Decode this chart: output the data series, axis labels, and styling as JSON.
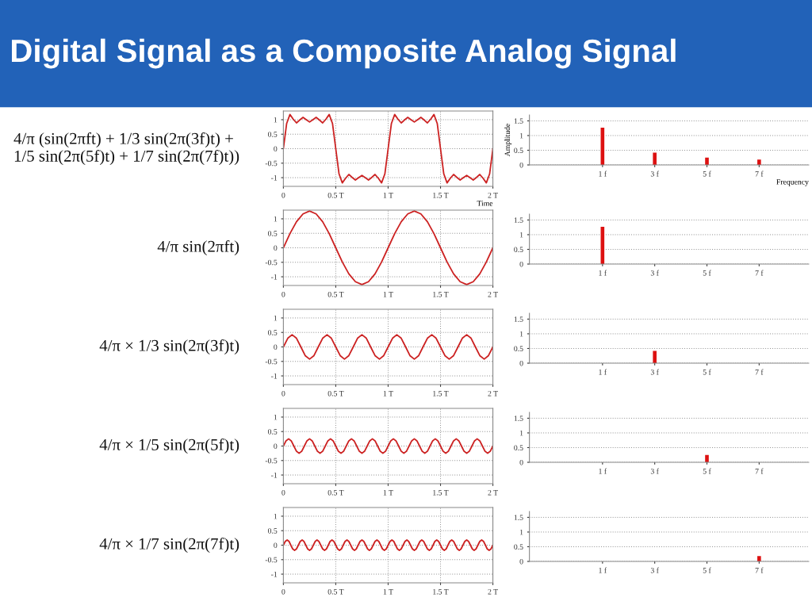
{
  "chart_data": [
    {
      "type": "line",
      "title": "Digital Signal as a Composite Analog Signal",
      "xlabel": "Time",
      "annotations": [
        "4/π (sin(2πft) + 1/3 sin(2π(3f)t) +\n1/5 sin(2π(5f)t) + 1/7 sin(2π(7f)t))"
      ],
      "xlim": [
        0,
        2
      ],
      "ylim": [
        -1.3,
        1.3
      ],
      "xticks": [
        0,
        {
          "value": 0.5,
          "label": "0.5 T"
        },
        {
          "value": 1,
          "label": "1 T"
        },
        {
          "value": 1.5,
          "label": "1.5 T"
        },
        {
          "value": 2,
          "label": "2 T"
        }
      ],
      "yticks": [
        -1,
        -0.5,
        0,
        0.5,
        1
      ],
      "grid": true,
      "series": [
        {
          "color": "#cc2222",
          "x": [
            0,
            0.0313,
            0.0625,
            0.0938,
            0.125,
            0.1563,
            0.1875,
            0.2188,
            0.25,
            0.2813,
            0.3125,
            0.3438,
            0.375,
            0.4063,
            0.4375,
            0.4688,
            0.5,
            0.5313,
            0.5625,
            0.5938,
            0.625,
            0.6563,
            0.6875,
            0.7188,
            0.75,
            0.7813,
            0.8125,
            0.8438,
            0.875,
            0.9063,
            0.9375,
            0.9688,
            1,
            1.0313,
            1.0625,
            1.0938,
            1.125,
            1.1563,
            1.1875,
            1.2188,
            1.25,
            1.2813,
            1.3125,
            1.3438,
            1.375,
            1.4063,
            1.4375,
            1.4688,
            1.5,
            1.5313,
            1.5625,
            1.5938,
            1.625,
            1.6563,
            1.6875,
            1.7188,
            1.75,
            1.7813,
            1.8125,
            1.8438,
            1.875,
            1.9063,
            1.9375,
            1.9688,
            2
          ],
          "values": [
            0,
            0.87,
            1.18,
            1.02,
            0.89,
            0.99,
            1.08,
            1.0,
            0.92,
            1.0,
            1.08,
            0.99,
            0.89,
            1.02,
            1.18,
            0.87,
            0,
            -0.87,
            -1.18,
            -1.02,
            -0.89,
            -0.99,
            -1.08,
            -1.0,
            -0.92,
            -1.0,
            -1.08,
            -0.99,
            -0.89,
            -1.02,
            -1.18,
            -0.87,
            0,
            0.87,
            1.18,
            1.02,
            0.89,
            0.99,
            1.08,
            1.0,
            0.92,
            1.0,
            1.08,
            0.99,
            0.89,
            1.02,
            1.18,
            0.87,
            0,
            -0.87,
            -1.18,
            -1.02,
            -0.89,
            -0.99,
            -1.08,
            -1.0,
            -0.92,
            -1.0,
            -1.08,
            -0.99,
            -0.89,
            -1.02,
            -1.18,
            -0.87,
            0
          ]
        }
      ]
    },
    {
      "type": "bar",
      "xlabel": "Frequency",
      "ylabel": "Amplitude",
      "categories": [
        "1 f",
        "3 f",
        "5 f",
        "7 f"
      ],
      "values": [
        1.27,
        0.42,
        0.25,
        0.18
      ],
      "color": "#dd1111",
      "ylim": [
        0,
        1.7
      ],
      "yticks": [
        0,
        0.5,
        1,
        1.5
      ],
      "grid": "y"
    },
    {
      "type": "line",
      "annotations": [
        "4/π sin(2πft)"
      ],
      "xlim": [
        0,
        2
      ],
      "ylim": [
        -1.3,
        1.3
      ],
      "xticks": [
        0,
        {
          "value": 0.5,
          "label": "0.5 T"
        },
        {
          "value": 1,
          "label": "1 T"
        },
        {
          "value": 1.5,
          "label": "1.5 T"
        },
        {
          "value": 2,
          "label": "2 T"
        }
      ],
      "yticks": [
        -1,
        -0.5,
        0,
        0.5,
        1
      ],
      "grid": true,
      "series": [
        {
          "color": "#cc2222",
          "x": [
            0,
            0.0625,
            0.125,
            0.1875,
            0.25,
            0.3125,
            0.375,
            0.4375,
            0.5,
            0.5625,
            0.625,
            0.6875,
            0.75,
            0.8125,
            0.875,
            0.9375,
            1,
            1.0625,
            1.125,
            1.1875,
            1.25,
            1.3125,
            1.375,
            1.4375,
            1.5,
            1.5625,
            1.625,
            1.6875,
            1.75,
            1.8125,
            1.875,
            1.9375,
            2
          ],
          "values": [
            0,
            0.49,
            0.9,
            1.17,
            1.27,
            1.17,
            0.9,
            0.49,
            0,
            -0.49,
            -0.9,
            -1.17,
            -1.27,
            -1.17,
            -0.9,
            -0.49,
            0,
            0.49,
            0.9,
            1.17,
            1.27,
            1.17,
            0.9,
            0.49,
            0,
            -0.49,
            -0.9,
            -1.17,
            -1.27,
            -1.17,
            -0.9,
            -0.49,
            0
          ]
        }
      ]
    },
    {
      "type": "bar",
      "categories": [
        "1 f",
        "3 f",
        "5 f",
        "7 f"
      ],
      "values": [
        1.27,
        null,
        null,
        null
      ],
      "color": "#dd1111",
      "ylim": [
        0,
        1.7
      ],
      "yticks": [
        0,
        0.5,
        1,
        1.5
      ],
      "grid": "y"
    },
    {
      "type": "line",
      "annotations": [
        "4/π × 1/3 sin(2π(3f)t)"
      ],
      "xlim": [
        0,
        2
      ],
      "ylim": [
        -1.3,
        1.3
      ],
      "xticks": [
        0,
        {
          "value": 0.5,
          "label": "0.5 T"
        },
        {
          "value": 1,
          "label": "1 T"
        },
        {
          "value": 1.5,
          "label": "1.5 T"
        },
        {
          "value": 2,
          "label": "2 T"
        }
      ],
      "yticks": [
        -1,
        -0.5,
        0,
        0.5,
        1
      ],
      "grid": true,
      "series": [
        {
          "color": "#cc2222",
          "x": [
            0,
            0.042,
            0.083,
            0.125,
            0.167,
            0.208,
            0.25,
            0.292,
            0.333,
            0.375,
            0.417,
            0.458,
            0.5,
            0.542,
            0.583,
            0.625,
            0.667,
            0.708,
            0.75,
            0.792,
            0.833,
            0.875,
            0.917,
            0.958,
            1,
            1.042,
            1.083,
            1.125,
            1.167,
            1.208,
            1.25,
            1.292,
            1.333,
            1.375,
            1.417,
            1.458,
            1.5,
            1.542,
            1.583,
            1.625,
            1.667,
            1.708,
            1.75,
            1.792,
            1.833,
            1.875,
            1.917,
            1.958,
            2
          ],
          "values": [
            0,
            0.3,
            0.42,
            0.3,
            0,
            -0.3,
            -0.42,
            -0.3,
            0,
            0.3,
            0.42,
            0.3,
            0,
            -0.3,
            -0.42,
            -0.3,
            0,
            0.3,
            0.42,
            0.3,
            0,
            -0.3,
            -0.42,
            -0.3,
            0,
            0.3,
            0.42,
            0.3,
            0,
            -0.3,
            -0.42,
            -0.3,
            0,
            0.3,
            0.42,
            0.3,
            0,
            -0.3,
            -0.42,
            -0.3,
            0,
            0.3,
            0.42,
            0.3,
            0,
            -0.3,
            -0.42,
            -0.3,
            0
          ]
        }
      ]
    },
    {
      "type": "bar",
      "categories": [
        "1 f",
        "3 f",
        "5 f",
        "7 f"
      ],
      "values": [
        null,
        0.42,
        null,
        null
      ],
      "color": "#dd1111",
      "ylim": [
        0,
        1.7
      ],
      "yticks": [
        0,
        0.5,
        1,
        1.5
      ],
      "grid": "y"
    },
    {
      "type": "line",
      "annotations": [
        "4/π × 1/5 sin(2π(5f)t)"
      ],
      "xlim": [
        0,
        2
      ],
      "ylim": [
        -1.3,
        1.3
      ],
      "xticks": [
        0,
        {
          "value": 0.5,
          "label": "0.5 T"
        },
        {
          "value": 1,
          "label": "1 T"
        },
        {
          "value": 1.5,
          "label": "1.5 T"
        },
        {
          "value": 2,
          "label": "2 T"
        }
      ],
      "yticks": [
        -1,
        -0.5,
        0,
        0.5,
        1
      ],
      "grid": true,
      "series": [
        {
          "color": "#cc2222",
          "x": [
            0,
            0.025,
            0.05,
            0.075,
            0.1,
            0.125,
            0.15,
            0.175,
            0.2,
            0.225,
            0.25,
            0.275,
            0.3,
            0.325,
            0.35,
            0.375,
            0.4,
            0.425,
            0.45,
            0.475,
            0.5,
            0.525,
            0.55,
            0.575,
            0.6,
            0.625,
            0.65,
            0.675,
            0.7,
            0.725,
            0.75,
            0.775,
            0.8,
            0.825,
            0.85,
            0.875,
            0.9,
            0.925,
            0.95,
            0.975,
            1,
            1.025,
            1.05,
            1.075,
            1.1,
            1.125,
            1.15,
            1.175,
            1.2,
            1.225,
            1.25,
            1.275,
            1.3,
            1.325,
            1.35,
            1.375,
            1.4,
            1.425,
            1.45,
            1.475,
            1.5,
            1.525,
            1.55,
            1.575,
            1.6,
            1.625,
            1.65,
            1.675,
            1.7,
            1.725,
            1.75,
            1.775,
            1.8,
            1.825,
            1.85,
            1.875,
            1.9,
            1.925,
            1.95,
            1.975,
            2
          ],
          "values": [
            0,
            0.18,
            0.25,
            0.18,
            0,
            -0.18,
            -0.25,
            -0.18,
            0,
            0.18,
            0.25,
            0.18,
            0,
            -0.18,
            -0.25,
            -0.18,
            0,
            0.18,
            0.25,
            0.18,
            0,
            -0.18,
            -0.25,
            -0.18,
            0,
            0.18,
            0.25,
            0.18,
            0,
            -0.18,
            -0.25,
            -0.18,
            0,
            0.18,
            0.25,
            0.18,
            0,
            -0.18,
            -0.25,
            -0.18,
            0,
            0.18,
            0.25,
            0.18,
            0,
            -0.18,
            -0.25,
            -0.18,
            0,
            0.18,
            0.25,
            0.18,
            0,
            -0.18,
            -0.25,
            -0.18,
            0,
            0.18,
            0.25,
            0.18,
            0,
            -0.18,
            -0.25,
            -0.18,
            0,
            0.18,
            0.25,
            0.18,
            0,
            -0.18,
            -0.25,
            -0.18,
            0,
            0.18,
            0.25,
            0.18,
            0,
            -0.18,
            -0.25,
            -0.18,
            0
          ]
        }
      ]
    },
    {
      "type": "bar",
      "categories": [
        "1 f",
        "3 f",
        "5 f",
        "7 f"
      ],
      "values": [
        null,
        null,
        0.25,
        null
      ],
      "color": "#dd1111",
      "ylim": [
        0,
        1.7
      ],
      "yticks": [
        0,
        0.5,
        1,
        1.5
      ],
      "grid": "y"
    },
    {
      "type": "line",
      "annotations": [
        "4/π × 1/7 sin(2π(7f)t)"
      ],
      "xlim": [
        0,
        2
      ],
      "ylim": [
        -1.3,
        1.3
      ],
      "xticks": [
        0,
        {
          "value": 0.5,
          "label": "0.5 T"
        },
        {
          "value": 1,
          "label": "1 T"
        },
        {
          "value": 1.5,
          "label": "1.5 T"
        },
        {
          "value": 2,
          "label": "2 T"
        }
      ],
      "yticks": [
        -1,
        -0.5,
        0,
        0.5,
        1
      ],
      "grid": true,
      "series": [
        {
          "color": "#cc2222",
          "x": [
            0,
            0.018,
            0.036,
            0.054,
            0.071,
            0.089,
            0.107,
            0.125,
            0.143,
            0.161,
            0.179,
            0.196,
            0.214,
            0.232,
            0.25,
            0.268,
            0.286,
            0.304,
            0.321,
            0.339,
            0.357,
            0.375,
            0.393,
            0.411,
            0.429,
            0.446,
            0.464,
            0.482,
            0.5,
            0.518,
            0.536,
            0.554,
            0.571,
            0.589,
            0.607,
            0.625,
            0.643,
            0.661,
            0.679,
            0.696,
            0.714,
            0.732,
            0.75,
            0.768,
            0.786,
            0.804,
            0.821,
            0.839,
            0.857,
            0.875,
            0.893,
            0.911,
            0.929,
            0.946,
            0.964,
            0.982,
            1,
            1.018,
            1.036,
            1.054,
            1.071,
            1.089,
            1.107,
            1.125,
            1.143,
            1.161,
            1.179,
            1.196,
            1.214,
            1.232,
            1.25,
            1.268,
            1.286,
            1.304,
            1.321,
            1.339,
            1.357,
            1.375,
            1.393,
            1.411,
            1.429,
            1.446,
            1.464,
            1.482,
            1.5,
            1.518,
            1.536,
            1.554,
            1.571,
            1.589,
            1.607,
            1.625,
            1.643,
            1.661,
            1.679,
            1.696,
            1.714,
            1.732,
            1.75,
            1.768,
            1.786,
            1.804,
            1.821,
            1.839,
            1.857,
            1.875,
            1.893,
            1.911,
            1.929,
            1.946,
            1.964,
            1.982,
            2
          ],
          "values": [
            0,
            0.13,
            0.18,
            0.13,
            0,
            -0.13,
            -0.18,
            -0.13,
            0,
            0.13,
            0.18,
            0.13,
            0,
            -0.13,
            -0.18,
            -0.13,
            0,
            0.13,
            0.18,
            0.13,
            0,
            -0.13,
            -0.18,
            -0.13,
            0,
            0.13,
            0.18,
            0.13,
            0,
            -0.13,
            -0.18,
            -0.13,
            0,
            0.13,
            0.18,
            0.13,
            0,
            -0.13,
            -0.18,
            -0.13,
            0,
            0.13,
            0.18,
            0.13,
            0,
            -0.13,
            -0.18,
            -0.13,
            0,
            0.13,
            0.18,
            0.13,
            0,
            -0.13,
            -0.18,
            -0.13,
            0,
            0.13,
            0.18,
            0.13,
            0,
            -0.13,
            -0.18,
            -0.13,
            0,
            0.13,
            0.18,
            0.13,
            0,
            -0.13,
            -0.18,
            -0.13,
            0,
            0.13,
            0.18,
            0.13,
            0,
            -0.13,
            -0.18,
            -0.13,
            0,
            0.13,
            0.18,
            0.13,
            0,
            -0.13,
            -0.18,
            -0.13,
            0,
            0.13,
            0.18,
            0.13,
            0,
            -0.13,
            -0.18,
            -0.13,
            0,
            0.13,
            0.18,
            0.13,
            0,
            -0.13,
            -0.18,
            -0.13,
            0,
            0.13,
            0.18,
            0.13,
            0,
            -0.13,
            -0.18,
            -0.13,
            0
          ]
        }
      ]
    },
    {
      "type": "bar",
      "categories": [
        "1 f",
        "3 f",
        "5 f",
        "7 f"
      ],
      "values": [
        null,
        null,
        null,
        0.18
      ],
      "color": "#dd1111",
      "ylim": [
        0,
        1.7
      ],
      "yticks": [
        0,
        0.5,
        1,
        1.5
      ],
      "grid": "y"
    }
  ]
}
